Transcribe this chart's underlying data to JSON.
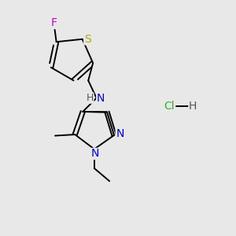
{
  "background_color": "#e8e8e8",
  "fig_width": 3.0,
  "fig_height": 3.0,
  "dpi": 100,
  "atom_colors": {
    "C": "#000000",
    "N": "#0000ee",
    "S": "#aaaa00",
    "F": "#cc00cc",
    "H": "#555555",
    "Cl": "#22bb22"
  },
  "bond_color": "#000000",
  "bond_width": 1.4,
  "font_size_atoms": 9
}
